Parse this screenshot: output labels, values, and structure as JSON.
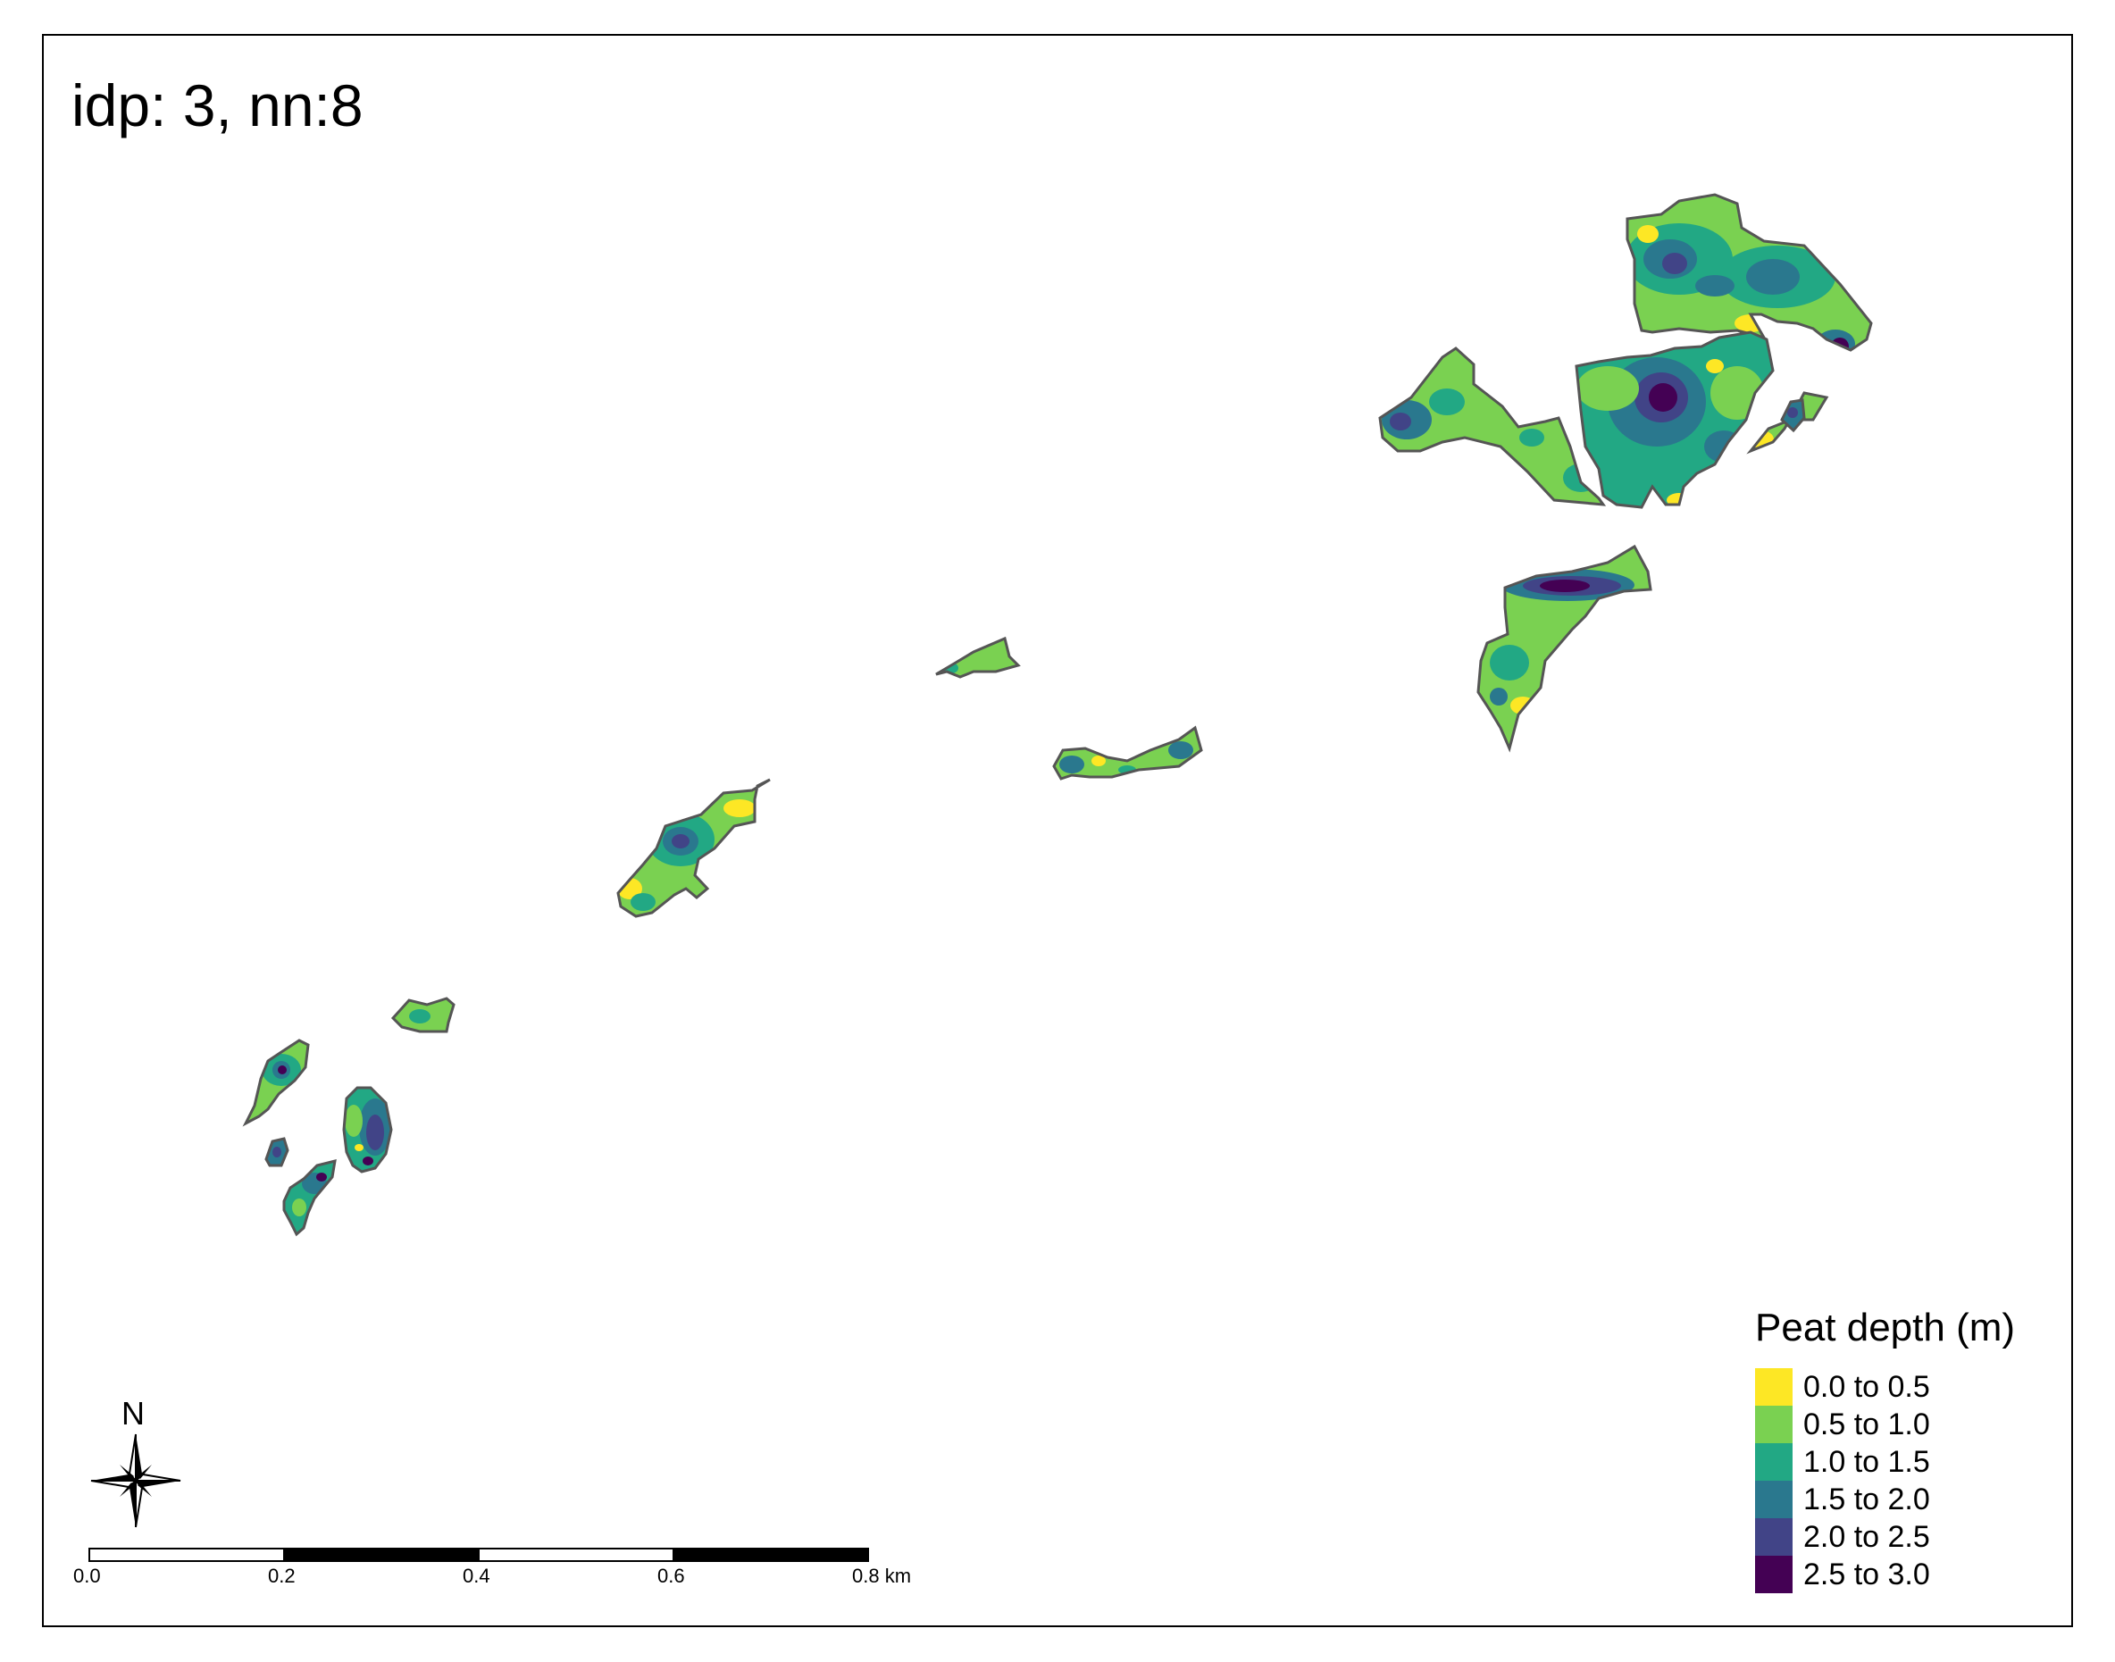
{
  "title": "idp: 3, nn:8",
  "legend": {
    "title": "Peat depth (m)",
    "items": [
      {
        "label": "0.0 to 0.5",
        "color": "#fde725"
      },
      {
        "label": "0.5 to 1.0",
        "color": "#7ad151"
      },
      {
        "label": "1.0 to 1.5",
        "color": "#22a884"
      },
      {
        "label": "1.5 to 2.0",
        "color": "#2a788e"
      },
      {
        "label": "2.0 to 2.5",
        "color": "#414487"
      },
      {
        "label": "2.5 to 3.0",
        "color": "#440154"
      }
    ]
  },
  "north_arrow": {
    "label": "N",
    "icon": "compass-rose-icon"
  },
  "scale_bar": {
    "ticks": [
      "0.0",
      "0.2",
      "0.4",
      "0.6",
      "0.8 km"
    ]
  },
  "colors": {
    "outline": "#555555"
  }
}
